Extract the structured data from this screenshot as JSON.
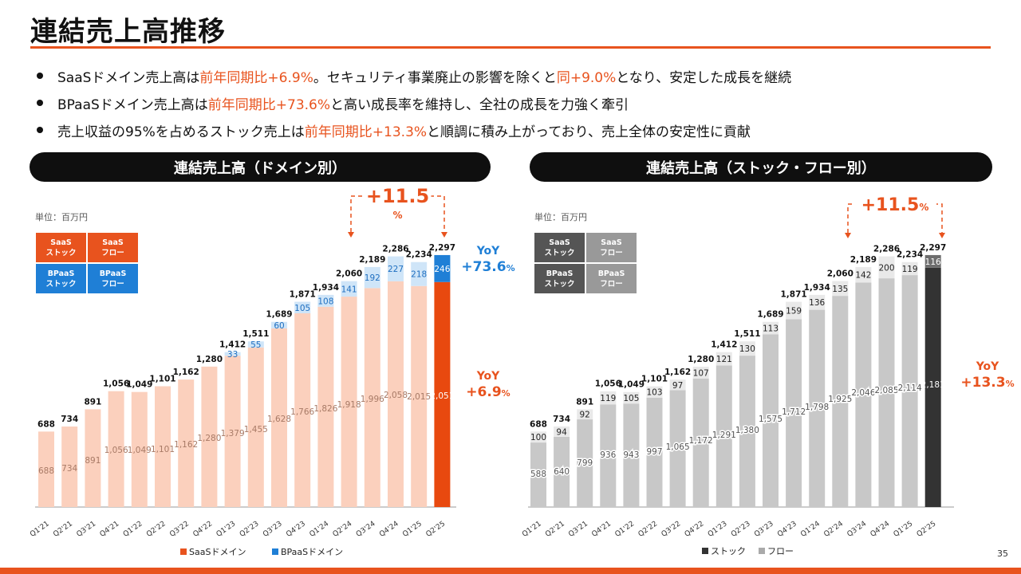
{
  "page": {
    "title": "連結売上高推移",
    "page_number": "35",
    "bullets": [
      [
        {
          "t": "SaaSドメイン売上高は"
        },
        {
          "t": "前年同期比+6.9%",
          "hl": true
        },
        {
          "t": "。セキュリティ事業廃止の影響を除くと"
        },
        {
          "t": "同+9.0%",
          "hl": true
        },
        {
          "t": "となり、安定した成長を継続"
        }
      ],
      [
        {
          "t": "BPaaSドメイン売上高は"
        },
        {
          "t": "前年同期比+73.6%",
          "hl": true
        },
        {
          "t": "と高い成長率を維持し、全社の成長を力強く牽引"
        }
      ],
      [
        {
          "t": "売上収益の95%を占めるストック売上は"
        },
        {
          "t": "前年同期比+13.3%",
          "hl": true
        },
        {
          "t": "と順調に積み上がっており、売上全体の安定性に貢献"
        }
      ]
    ]
  },
  "left_panel": {
    "header": "連結売上高（ドメイン別）",
    "unit": "単位：百万円",
    "legend_grid": [
      {
        "line1": "SaaS",
        "line2": "ストック",
        "color": "#e8531e"
      },
      {
        "line1": "SaaS",
        "line2": "フロー",
        "color": "#e8531e"
      },
      {
        "line1": "BPaaS",
        "line2": "ストック",
        "color": "#1f7fd6"
      },
      {
        "line1": "BPaaS",
        "line2": "フロー",
        "color": "#1f7fd6"
      }
    ],
    "growth_callout": {
      "value": "+11.5",
      "unit": "%"
    },
    "yoy_top": {
      "label": "YoY",
      "value": "+73.6",
      "unit": "%",
      "color": "#1f7fd6"
    },
    "yoy_bottom": {
      "label": "YoY",
      "value": "+6.9",
      "unit": "%",
      "color": "#e8531e"
    },
    "legend": [
      {
        "label": "SaaSドメイン",
        "color": "#e8531e"
      },
      {
        "label": "BPaaSドメイン",
        "color": "#1f7fd6"
      }
    ]
  },
  "right_panel": {
    "header": "連結売上高（ストック・フロー別）",
    "unit": "単位：百万円",
    "legend_grid": [
      {
        "line1": "SaaS",
        "line2": "ストック",
        "color": "#555555"
      },
      {
        "line1": "SaaS",
        "line2": "フロー",
        "color": "#999999"
      },
      {
        "line1": "BPaaS",
        "line2": "ストック",
        "color": "#555555"
      },
      {
        "line1": "BPaaS",
        "line2": "フロー",
        "color": "#999999"
      }
    ],
    "growth_callout": {
      "value": "+11.5",
      "unit": "%"
    },
    "yoy": {
      "label": "YoY",
      "value": "+13.3",
      "unit": "%",
      "color": "#e8531e"
    },
    "legend": [
      {
        "label": "ストック",
        "color": "#333333"
      },
      {
        "label": "フロー",
        "color": "#aaaaaa"
      }
    ]
  },
  "chart_data": [
    {
      "type": "bar",
      "stacked": true,
      "categories": [
        "Q1'21",
        "Q2'21",
        "Q3'21",
        "Q4'21",
        "Q1'22",
        "Q2'22",
        "Q3'22",
        "Q4'22",
        "Q1'23",
        "Q2'23",
        "Q3'23",
        "Q4'23",
        "Q1'24",
        "Q2'24",
        "Q3'24",
        "Q4'24",
        "Q1'25",
        "Q2'25"
      ],
      "series": [
        {
          "name": "SaaSドメイン",
          "values": [
            688,
            734,
            891,
            1056,
            1049,
            1101,
            1162,
            1280,
            1379,
            1455,
            1628,
            1766,
            1826,
            1918,
            1996,
            2058,
            2015,
            2051
          ]
        },
        {
          "name": "BPaaSドメイン",
          "values": [
            null,
            null,
            null,
            null,
            null,
            null,
            null,
            null,
            33,
            55,
            60,
            105,
            108,
            141,
            192,
            227,
            218,
            246
          ]
        }
      ],
      "totals": [
        688,
        734,
        891,
        1056,
        1049,
        1101,
        1162,
        1280,
        1412,
        1511,
        1689,
        1871,
        1934,
        2060,
        2189,
        2286,
        2234,
        2297
      ],
      "ylim": [
        0,
        2500
      ]
    },
    {
      "type": "bar",
      "stacked": true,
      "categories": [
        "Q1'21",
        "Q2'21",
        "Q3'21",
        "Q4'21",
        "Q1'22",
        "Q2'22",
        "Q3'22",
        "Q4'22",
        "Q1'23",
        "Q2'23",
        "Q3'23",
        "Q4'23",
        "Q1'24",
        "Q2'24",
        "Q3'24",
        "Q4'24",
        "Q1'25",
        "Q2'25"
      ],
      "series": [
        {
          "name": "ストック",
          "values": [
            588,
            640,
            799,
            936,
            943,
            997,
            1065,
            1172,
            1291,
            1380,
            1575,
            1712,
            1798,
            1925,
            2046,
            2085,
            2114,
            2181
          ]
        },
        {
          "name": "フロー",
          "values": [
            100,
            94,
            92,
            119,
            105,
            103,
            97,
            107,
            121,
            130,
            113,
            159,
            136,
            135,
            142,
            200,
            119,
            116
          ]
        }
      ],
      "totals": [
        688,
        734,
        891,
        1056,
        1049,
        1101,
        1162,
        1280,
        1412,
        1511,
        1689,
        1871,
        1934,
        2060,
        2189,
        2286,
        2234,
        2297
      ],
      "ylim": [
        0,
        2500
      ]
    }
  ]
}
